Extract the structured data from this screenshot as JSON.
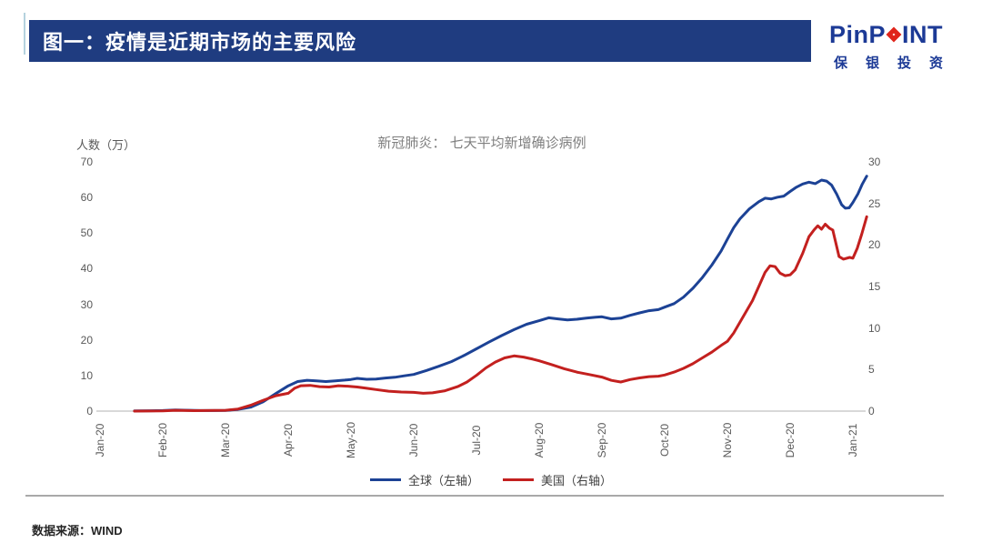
{
  "header": {
    "title": "图一：疫情是近期市场的主要风险"
  },
  "logo": {
    "word_left": "PinP",
    "word_right": "INT",
    "diamond_icon": "red-diamond",
    "chinese": "保银投资",
    "blue": "#1c3a96",
    "red": "#e0251b"
  },
  "footer": {
    "source": "数据来源：WIND"
  },
  "chart_data": {
    "type": "line",
    "title": "新冠肺炎： 七天平均新增确诊病例",
    "legend_position": "bottom",
    "grid": false,
    "x_labels": [
      "Jan-20",
      "Feb-20",
      "Mar-20",
      "Apr-20",
      "May-20",
      "Jun-20",
      "Jul-20",
      "Aug-20",
      "Sep-20",
      "Oct-20",
      "Nov-20",
      "Dec-20",
      "Jan-21"
    ],
    "x_unit": "month index from Jan-20",
    "y_left": {
      "label": "人数（万）",
      "range": [
        0,
        70
      ],
      "ticks": [
        0,
        10,
        20,
        30,
        40,
        50,
        60,
        70
      ]
    },
    "y_right": {
      "label": "",
      "range": [
        0,
        30
      ],
      "ticks": [
        0,
        5,
        10,
        15,
        20,
        25,
        30
      ]
    },
    "axis_color": "#d9d9d9",
    "series": [
      {
        "name": "全球（左轴）",
        "axis": "left",
        "color": "#1c4295",
        "points": [
          [
            0.55,
            0.05
          ],
          [
            0.8,
            0.1
          ],
          [
            1.0,
            0.15
          ],
          [
            1.2,
            0.3
          ],
          [
            1.35,
            0.25
          ],
          [
            1.6,
            0.15
          ],
          [
            1.8,
            0.15
          ],
          [
            2.0,
            0.2
          ],
          [
            2.2,
            0.45
          ],
          [
            2.4,
            1.1
          ],
          [
            2.6,
            2.6
          ],
          [
            2.8,
            4.9
          ],
          [
            3.0,
            7.1
          ],
          [
            3.15,
            8.3
          ],
          [
            3.3,
            8.65
          ],
          [
            3.45,
            8.5
          ],
          [
            3.6,
            8.3
          ],
          [
            3.75,
            8.5
          ],
          [
            3.9,
            8.7
          ],
          [
            4.0,
            8.9
          ],
          [
            4.1,
            9.2
          ],
          [
            4.25,
            8.95
          ],
          [
            4.4,
            9.0
          ],
          [
            4.55,
            9.3
          ],
          [
            4.7,
            9.5
          ],
          [
            4.85,
            9.9
          ],
          [
            5.0,
            10.3
          ],
          [
            5.2,
            11.4
          ],
          [
            5.4,
            12.6
          ],
          [
            5.6,
            13.9
          ],
          [
            5.8,
            15.6
          ],
          [
            6.0,
            17.5
          ],
          [
            6.2,
            19.4
          ],
          [
            6.4,
            21.2
          ],
          [
            6.6,
            22.9
          ],
          [
            6.8,
            24.4
          ],
          [
            7.0,
            25.4
          ],
          [
            7.15,
            26.2
          ],
          [
            7.3,
            25.9
          ],
          [
            7.45,
            25.6
          ],
          [
            7.6,
            25.8
          ],
          [
            7.75,
            26.1
          ],
          [
            7.9,
            26.4
          ],
          [
            8.0,
            26.5
          ],
          [
            8.15,
            25.9
          ],
          [
            8.3,
            26.1
          ],
          [
            8.45,
            26.9
          ],
          [
            8.6,
            27.6
          ],
          [
            8.75,
            28.2
          ],
          [
            8.9,
            28.5
          ],
          [
            9.0,
            29.2
          ],
          [
            9.15,
            30.2
          ],
          [
            9.3,
            32.0
          ],
          [
            9.45,
            34.5
          ],
          [
            9.6,
            37.5
          ],
          [
            9.75,
            41.0
          ],
          [
            9.9,
            45.0
          ],
          [
            10.0,
            48.3
          ],
          [
            10.1,
            51.5
          ],
          [
            10.2,
            54.0
          ],
          [
            10.35,
            56.8
          ],
          [
            10.5,
            58.8
          ],
          [
            10.6,
            59.8
          ],
          [
            10.7,
            59.6
          ],
          [
            10.8,
            60.1
          ],
          [
            10.9,
            60.4
          ],
          [
            11.0,
            61.7
          ],
          [
            11.1,
            62.9
          ],
          [
            11.2,
            63.8
          ],
          [
            11.3,
            64.3
          ],
          [
            11.4,
            63.9
          ],
          [
            11.5,
            64.9
          ],
          [
            11.58,
            64.6
          ],
          [
            11.66,
            63.5
          ],
          [
            11.74,
            61.0
          ],
          [
            11.82,
            58.0
          ],
          [
            11.88,
            57.0
          ],
          [
            11.94,
            57.1
          ],
          [
            12.0,
            58.6
          ],
          [
            12.08,
            61.0
          ],
          [
            12.15,
            63.8
          ],
          [
            12.22,
            66.0
          ]
        ]
      },
      {
        "name": "美国（右轴）",
        "axis": "right",
        "color": "#c3201f",
        "points": [
          [
            0.55,
            0.0
          ],
          [
            1.0,
            0.03
          ],
          [
            1.2,
            0.1
          ],
          [
            1.5,
            0.06
          ],
          [
            2.0,
            0.1
          ],
          [
            2.2,
            0.25
          ],
          [
            2.4,
            0.7
          ],
          [
            2.6,
            1.3
          ],
          [
            2.8,
            1.85
          ],
          [
            3.0,
            2.15
          ],
          [
            3.1,
            2.75
          ],
          [
            3.2,
            3.05
          ],
          [
            3.35,
            3.1
          ],
          [
            3.5,
            2.95
          ],
          [
            3.65,
            2.9
          ],
          [
            3.8,
            3.05
          ],
          [
            3.95,
            3.0
          ],
          [
            4.1,
            2.9
          ],
          [
            4.25,
            2.75
          ],
          [
            4.4,
            2.6
          ],
          [
            4.6,
            2.4
          ],
          [
            4.8,
            2.3
          ],
          [
            5.0,
            2.25
          ],
          [
            5.15,
            2.15
          ],
          [
            5.3,
            2.2
          ],
          [
            5.5,
            2.45
          ],
          [
            5.7,
            2.95
          ],
          [
            5.85,
            3.5
          ],
          [
            6.0,
            4.3
          ],
          [
            6.15,
            5.2
          ],
          [
            6.3,
            5.9
          ],
          [
            6.45,
            6.4
          ],
          [
            6.6,
            6.65
          ],
          [
            6.75,
            6.5
          ],
          [
            6.9,
            6.25
          ],
          [
            7.0,
            6.05
          ],
          [
            7.2,
            5.6
          ],
          [
            7.4,
            5.1
          ],
          [
            7.6,
            4.7
          ],
          [
            7.8,
            4.4
          ],
          [
            8.0,
            4.1
          ],
          [
            8.15,
            3.7
          ],
          [
            8.3,
            3.5
          ],
          [
            8.45,
            3.8
          ],
          [
            8.6,
            4.0
          ],
          [
            8.75,
            4.15
          ],
          [
            8.9,
            4.2
          ],
          [
            9.0,
            4.35
          ],
          [
            9.15,
            4.7
          ],
          [
            9.3,
            5.15
          ],
          [
            9.45,
            5.7
          ],
          [
            9.6,
            6.4
          ],
          [
            9.75,
            7.1
          ],
          [
            9.9,
            7.9
          ],
          [
            10.0,
            8.4
          ],
          [
            10.1,
            9.4
          ],
          [
            10.2,
            10.7
          ],
          [
            10.3,
            12.0
          ],
          [
            10.4,
            13.3
          ],
          [
            10.5,
            15.0
          ],
          [
            10.6,
            16.7
          ],
          [
            10.68,
            17.5
          ],
          [
            10.76,
            17.4
          ],
          [
            10.84,
            16.6
          ],
          [
            10.92,
            16.3
          ],
          [
            11.0,
            16.4
          ],
          [
            11.08,
            17.0
          ],
          [
            11.2,
            19.0
          ],
          [
            11.3,
            21.0
          ],
          [
            11.38,
            21.8
          ],
          [
            11.44,
            22.3
          ],
          [
            11.5,
            21.9
          ],
          [
            11.56,
            22.5
          ],
          [
            11.63,
            22.0
          ],
          [
            11.68,
            21.8
          ],
          [
            11.72,
            20.5
          ],
          [
            11.78,
            18.6
          ],
          [
            11.85,
            18.3
          ],
          [
            11.95,
            18.5
          ],
          [
            12.0,
            18.4
          ],
          [
            12.07,
            19.6
          ],
          [
            12.14,
            21.3
          ],
          [
            12.22,
            23.4
          ]
        ]
      }
    ]
  }
}
